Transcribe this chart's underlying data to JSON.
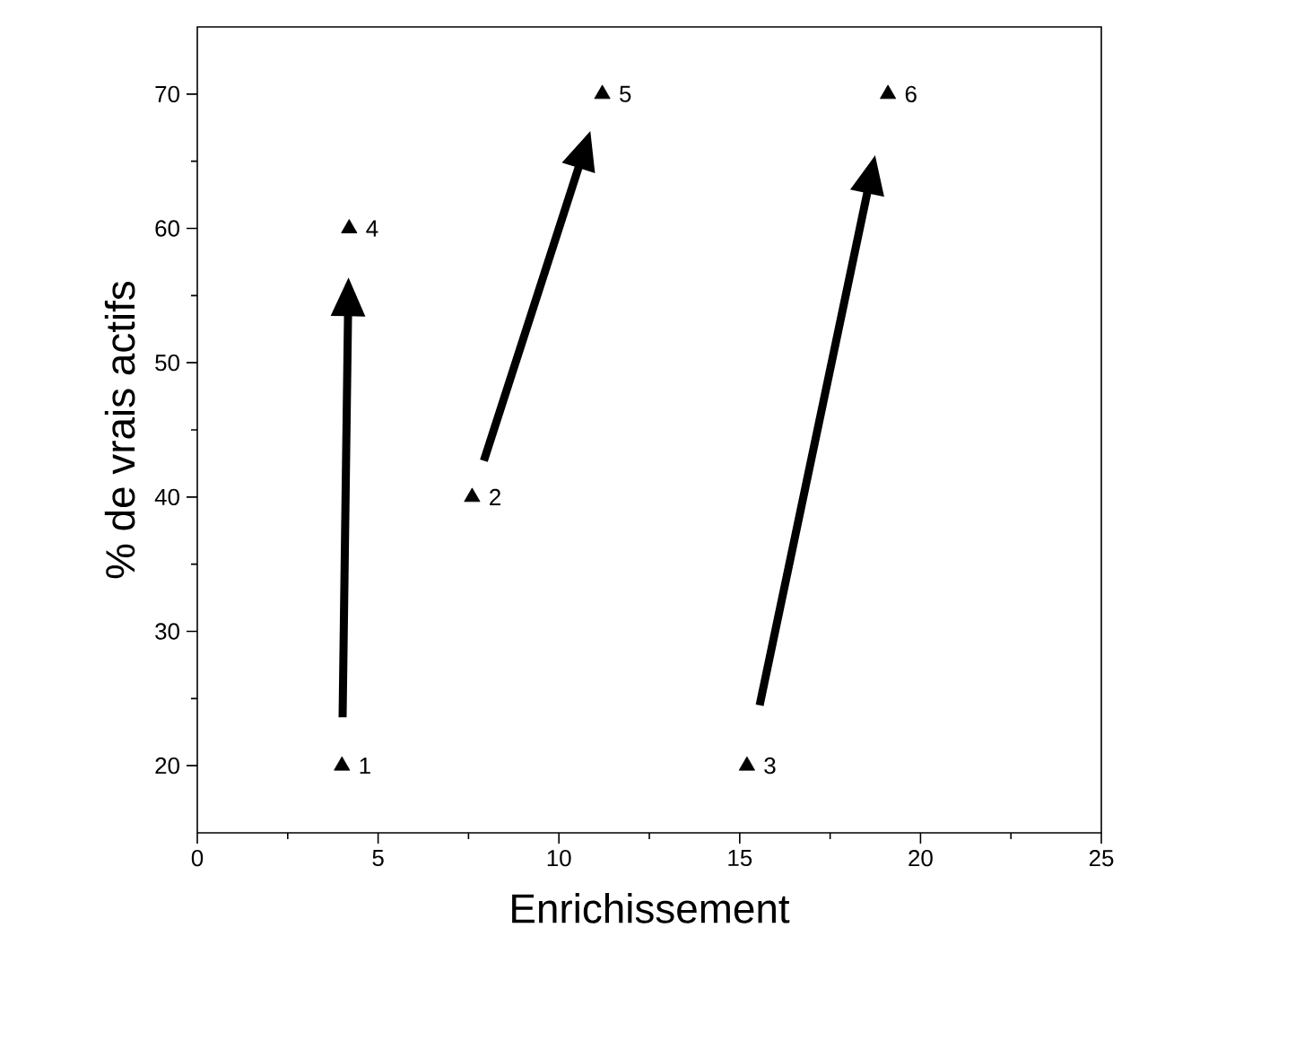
{
  "chart_data": {
    "type": "scatter",
    "xlabel": "Enrichissement",
    "ylabel": "% de vrais actifs",
    "x": [
      4,
      7.6,
      15.2,
      4.2,
      11.2,
      19.1
    ],
    "series": [
      {
        "color": "#000000",
        "values": [
          20,
          40,
          20,
          60,
          70,
          70
        ]
      }
    ],
    "marker": "triangle",
    "xlim": [
      0,
      25
    ],
    "ylim": [
      15,
      75
    ],
    "xticks": [
      0,
      5,
      10,
      15,
      20,
      25
    ],
    "yticks": [
      20,
      30,
      40,
      50,
      60,
      70
    ],
    "annotations": [
      {
        "text": "1",
        "x": 4,
        "y": 20
      },
      {
        "text": "2",
        "x": 7.6,
        "y": 40
      },
      {
        "text": "3",
        "x": 15.2,
        "y": 20
      },
      {
        "text": "4",
        "x": 4.2,
        "y": 60
      },
      {
        "text": "5",
        "x": 11.2,
        "y": 70
      },
      {
        "text": "6",
        "x": 19.1,
        "y": 70
      }
    ]
  }
}
